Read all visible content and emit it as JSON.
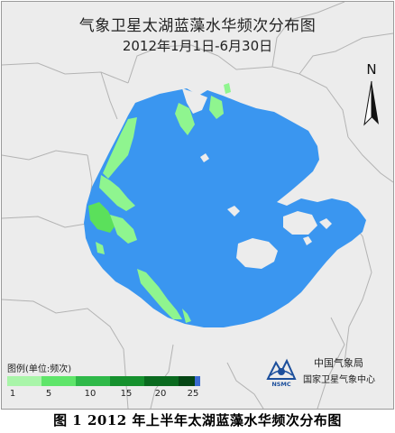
{
  "map": {
    "title": "气象卫星太湖蓝藻水华频次分布图",
    "subtitle": "2012年1月1日-6月30日",
    "north_label": "N",
    "colors": {
      "land": "#ececec",
      "boundary": "#b3b3b3",
      "water": "#3a96f0",
      "bloom_light": "#8ff58f",
      "bloom_mid": "#5be05b"
    }
  },
  "legend": {
    "title": "图例(单位:频次)",
    "swatches": [
      {
        "color": "#a9f5a9"
      },
      {
        "color": "#5fe56a"
      },
      {
        "color": "#2fb949"
      },
      {
        "color": "#16912e"
      },
      {
        "color": "#0a6a1f"
      },
      {
        "color": "#054514"
      }
    ],
    "end_color": "#3a6ad0",
    "ticks": [
      "1",
      "5",
      "10",
      "15",
      "20",
      "25"
    ]
  },
  "agency": {
    "logo_text": "NSMC",
    "name_line1": "中国气象局",
    "name_line2": "国家卫星气象中心",
    "logo_color": "#1c4f9c"
  },
  "caption": {
    "text": "图 1  2012 年上半年太湖蓝藻水华频次分布图"
  }
}
